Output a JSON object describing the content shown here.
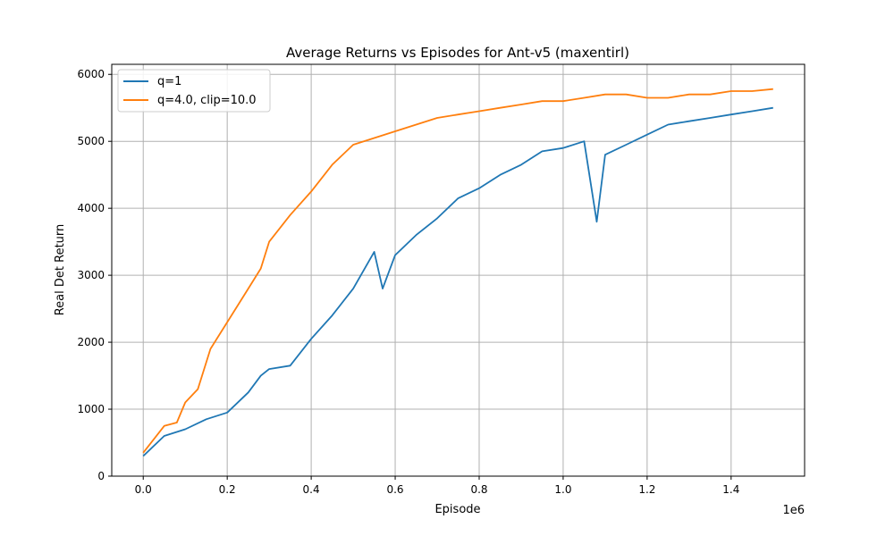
{
  "chart_data": {
    "type": "line",
    "title": "Average Returns vs Episodes for Ant-v5 (maxentirl)",
    "xlabel": "Episode",
    "ylabel": "Real Det Return",
    "x_offset_label": "1e6",
    "xlim": [
      -0.075,
      1.575
    ],
    "ylim": [
      0,
      6150
    ],
    "x_ticks": [
      0.0,
      0.2,
      0.4,
      0.6,
      0.8,
      1.0,
      1.2,
      1.4
    ],
    "x_tick_labels": [
      "0.0",
      "0.2",
      "0.4",
      "0.6",
      "0.8",
      "1.0",
      "1.2",
      "1.4"
    ],
    "y_ticks": [
      0,
      1000,
      2000,
      3000,
      4000,
      5000,
      6000
    ],
    "y_tick_labels": [
      "0",
      "1000",
      "2000",
      "3000",
      "4000",
      "5000",
      "6000"
    ],
    "grid": true,
    "legend_position": "top-left",
    "series": [
      {
        "name": "q=1",
        "color": "#1f77b4",
        "x": [
          0.0,
          0.05,
          0.1,
          0.15,
          0.2,
          0.25,
          0.28,
          0.3,
          0.35,
          0.4,
          0.45,
          0.5,
          0.55,
          0.57,
          0.6,
          0.65,
          0.7,
          0.75,
          0.8,
          0.85,
          0.9,
          0.95,
          1.0,
          1.05,
          1.08,
          1.1,
          1.15,
          1.2,
          1.25,
          1.3,
          1.35,
          1.4,
          1.45,
          1.5
        ],
        "y": [
          300,
          600,
          700,
          850,
          950,
          1250,
          1500,
          1600,
          1650,
          2050,
          2400,
          2800,
          3350,
          2800,
          3300,
          3600,
          3850,
          4150,
          4300,
          4500,
          4650,
          4850,
          4900,
          5000,
          3800,
          4800,
          4950,
          5100,
          5250,
          5300,
          5350,
          5400,
          5450,
          5500
        ]
      },
      {
        "name": "q=4.0, clip=10.0",
        "color": "#ff7f0e",
        "x": [
          0.0,
          0.05,
          0.08,
          0.1,
          0.13,
          0.16,
          0.2,
          0.23,
          0.25,
          0.28,
          0.3,
          0.35,
          0.4,
          0.45,
          0.5,
          0.55,
          0.6,
          0.65,
          0.7,
          0.75,
          0.8,
          0.85,
          0.9,
          0.95,
          1.0,
          1.05,
          1.1,
          1.15,
          1.2,
          1.25,
          1.3,
          1.35,
          1.4,
          1.45,
          1.5
        ],
        "y": [
          350,
          750,
          800,
          1100,
          1300,
          1900,
          2300,
          2600,
          2800,
          3100,
          3500,
          3900,
          4250,
          4650,
          4950,
          5050,
          5150,
          5250,
          5350,
          5400,
          5450,
          5500,
          5550,
          5600,
          5600,
          5650,
          5700,
          5700,
          5650,
          5650,
          5700,
          5700,
          5750,
          5750,
          5780
        ]
      }
    ]
  }
}
